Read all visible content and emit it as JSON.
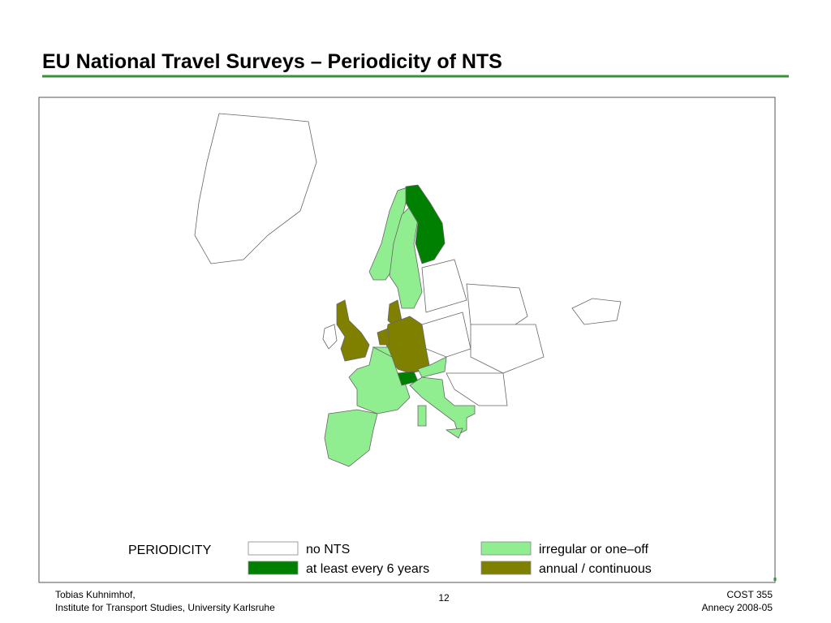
{
  "header": {
    "title": "EU National Travel Surveys – Periodicity of NTS"
  },
  "legend": {
    "title": "PERIODICITY",
    "items": [
      {
        "label": "no NTS",
        "color": "#ffffff"
      },
      {
        "label": "irregular or one–off",
        "color": "#90ee90"
      },
      {
        "label": "at least every 6 years",
        "color": "#008000"
      },
      {
        "label": "annual / continuous",
        "color": "#808000"
      }
    ]
  },
  "footer": {
    "author": "Tobias Kuhnimhof,",
    "institute": "Institute for Transport Studies, University Karlsruhe",
    "page": "12",
    "event": "COST 355",
    "place": "Annecy 2008-05"
  }
}
